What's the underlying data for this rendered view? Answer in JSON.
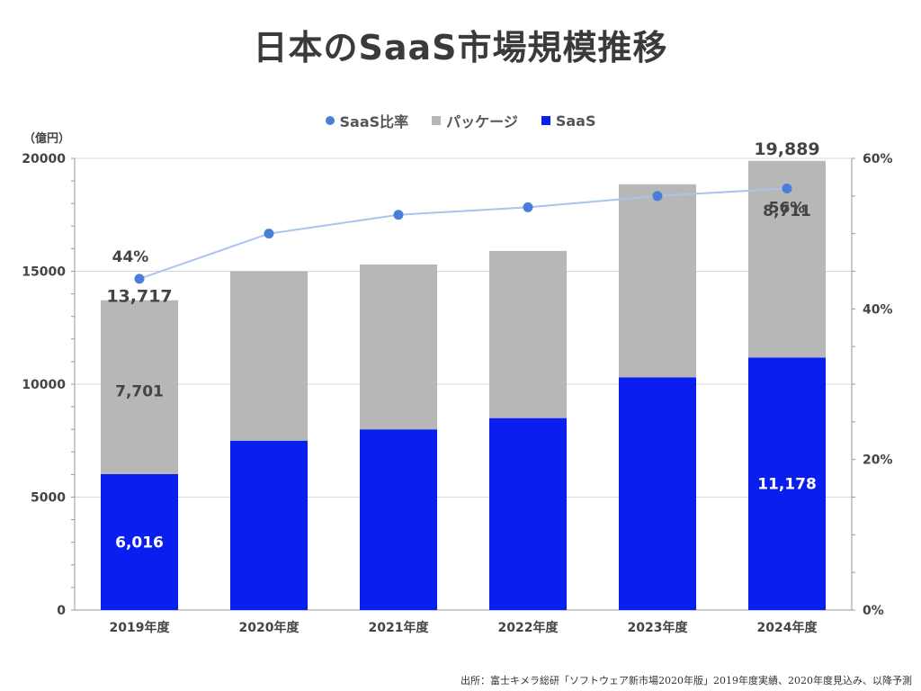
{
  "title": "日本のSaaS市場規模推移",
  "unit_label": "（億円）",
  "legend": [
    {
      "name": "SaaS比率",
      "color": "#4a7fd8",
      "shape": "dot"
    },
    {
      "name": "パッケージ",
      "color": "#b7b7b7",
      "shape": "square"
    },
    {
      "name": "SaaS",
      "color": "#0a1ef0",
      "shape": "square"
    }
  ],
  "source": "出所：富士キメラ総研「ソフトウェア新市場2020年版」2019年度実績、2020年度見込み、以降予測",
  "chart_data": {
    "type": "bar",
    "stacked": true,
    "categories": [
      "2019年度",
      "2020年度",
      "2021年度",
      "2022年度",
      "2023年度",
      "2024年度"
    ],
    "series": [
      {
        "name": "SaaS",
        "color": "#0a1ef0",
        "values": [
          6016,
          7500,
          8000,
          8500,
          10300,
          11178
        ]
      },
      {
        "name": "パッケージ",
        "color": "#b7b7b7",
        "values": [
          7701,
          7500,
          7300,
          7400,
          8550,
          8711
        ]
      },
      {
        "name": "SaaS比率",
        "type": "line",
        "axis": "right",
        "color": "#4a7fd8",
        "values": [
          44,
          50,
          52.5,
          53.5,
          55,
          56
        ]
      }
    ],
    "ylim": [
      0,
      20000
    ],
    "y_ticks": [
      "0",
      "5000",
      "10000",
      "15000",
      "20000"
    ],
    "y2lim": [
      0,
      60
    ],
    "y2_ticks": [
      "0%",
      "20%",
      "40%",
      "60%"
    ],
    "grid": true,
    "legend_position": "top",
    "data_labels": {
      "saas": {
        "0": "6,016",
        "5": "11,178"
      },
      "package": {
        "0": "7,701",
        "5": "8,711"
      },
      "total": {
        "0": "13,717",
        "5": "19,889"
      },
      "ratio": {
        "0": "44%",
        "5": "56%"
      }
    }
  }
}
